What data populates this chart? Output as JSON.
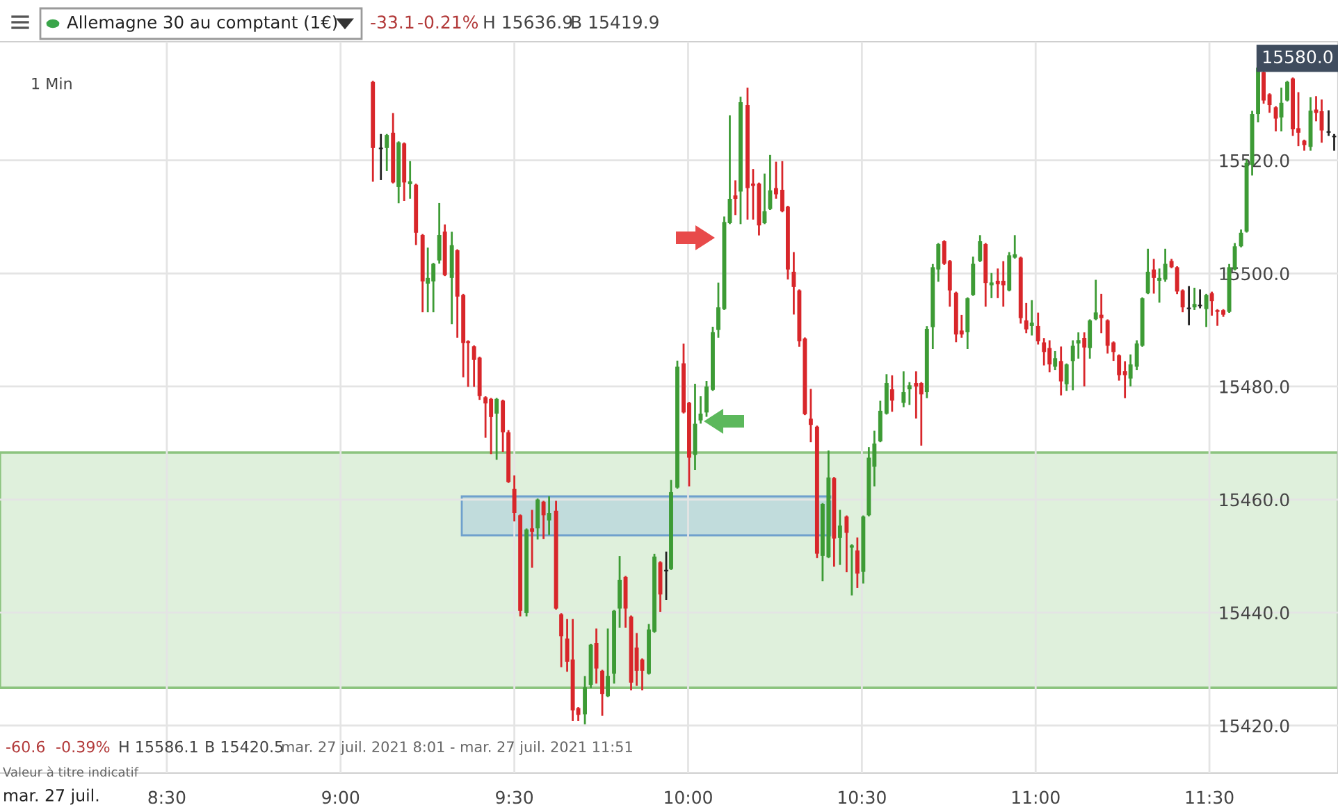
{
  "chart_data": {
    "type": "candlestick",
    "title": "Allemagne 30 au comptant (1€)",
    "annotations": [
      "-33.1",
      "-0.21%",
      "H 15636.9",
      "B 15419.9",
      "1 Min",
      "15580.0",
      "-60.6",
      "-0.39%",
      "H 15586.1",
      "B 15420.5",
      "mar. 27 juil. 2021 8:01 - mar. 27 juil. 2021 11:51",
      "Valeur à titre indicatif",
      "mar. 27 juil."
    ],
    "x": [
      9.093,
      9.116,
      9.133,
      9.151,
      9.167,
      9.183,
      9.2,
      9.217,
      9.236,
      9.251,
      9.267,
      9.284,
      9.3,
      9.32,
      9.336,
      9.353,
      9.367,
      9.384,
      9.4,
      9.417,
      9.433,
      9.449,
      9.467,
      9.483,
      9.5,
      9.517,
      9.535,
      9.551,
      9.567,
      9.584,
      9.6,
      9.62,
      9.635,
      9.652,
      9.668,
      9.684,
      9.703,
      9.72,
      9.736,
      9.753,
      9.769,
      9.787,
      9.803,
      9.82,
      9.836,
      9.852,
      9.868,
      9.887,
      9.903,
      9.92,
      9.937,
      9.951,
      9.969,
      9.987,
      10.003,
      10.02,
      10.036,
      10.053,
      10.071,
      10.087,
      10.104,
      10.12,
      10.136,
      10.151,
      10.171,
      10.187,
      10.204,
      10.22,
      10.236,
      10.253,
      10.271,
      10.287,
      10.304,
      10.32,
      10.336,
      10.353,
      10.371,
      10.387,
      10.404,
      10.42,
      10.437,
      10.456,
      10.471,
      10.487,
      10.504,
      10.52,
      10.536,
      10.553,
      10.571,
      10.587,
      10.62,
      10.637,
      10.656,
      10.671,
      10.687,
      10.704,
      10.72,
      10.737,
      10.753,
      10.771,
      10.787,
      10.804,
      10.82,
      10.84,
      10.856,
      10.873,
      10.891,
      10.907,
      10.924,
      10.94,
      10.957,
      10.973,
      10.989,
      11.007,
      11.024,
      11.04,
      11.056,
      11.073,
      11.089,
      11.107,
      11.123,
      11.14,
      11.156,
      11.173,
      11.189,
      11.207,
      11.224,
      11.24,
      11.257,
      11.273,
      11.291,
      11.307,
      11.323,
      11.34,
      11.356,
      11.373,
      11.391,
      11.407,
      11.423,
      11.441,
      11.457,
      11.473,
      11.491,
      11.507,
      11.523,
      11.54,
      11.557,
      11.573,
      11.591,
      11.607,
      11.623,
      11.64,
      11.656,
      11.673,
      11.691,
      11.707,
      11.724,
      11.74,
      11.756,
      11.773,
      11.791,
      11.807,
      11.823,
      11.843,
      11.859
    ],
    "ohlc": [
      [
        15533.9,
        15533.9,
        15516.4,
        15522.2
      ],
      [
        15522.0,
        15524.5,
        15516.7,
        15522.0
      ],
      [
        15522.2,
        15524.5,
        15518.3,
        15524.5
      ],
      [
        15524.9,
        15528.2,
        15516.1,
        15516.1
      ],
      [
        15515.3,
        15523.2,
        15512.6,
        15523.2
      ],
      [
        15523.0,
        15523.0,
        15513.0,
        15516.1
      ],
      [
        15515.8,
        15519.7,
        15513.4,
        15516.3
      ],
      [
        15515.7,
        15515.7,
        15505.2,
        15507.2
      ],
      [
        15506.8,
        15506.8,
        15493.3,
        15498.6
      ],
      [
        15498.2,
        15504.4,
        15493.3,
        15499.2
      ],
      [
        15498.6,
        15501.7,
        15493.3,
        15501.7
      ],
      [
        15502.3,
        15512.3,
        15501.9,
        15506.8
      ],
      [
        15507.4,
        15508.5,
        15499.7,
        15499.7
      ],
      [
        15499.2,
        15507.2,
        15491.2,
        15505.0
      ],
      [
        15504.1,
        15504.1,
        15488.8,
        15495.9
      ],
      [
        15496.2,
        15496.2,
        15481.8,
        15487.7
      ],
      [
        15488.0,
        15488.0,
        15480.1,
        15487.7
      ],
      [
        15487.1,
        15487.1,
        15480.1,
        15484.7
      ],
      [
        15485.1,
        15485.1,
        15477.8,
        15478.3
      ],
      [
        15478.1,
        15478.1,
        15471.1,
        15477.0
      ],
      [
        15477.8,
        15477.8,
        15468.2,
        15474.6
      ],
      [
        15475.2,
        15477.8,
        15467.2,
        15477.8
      ],
      [
        15477.5,
        15477.5,
        15468.6,
        15471.9
      ],
      [
        15471.9,
        15472.1,
        15463.1,
        15463.1
      ],
      [
        15461.9,
        15464.1,
        15456.3,
        15457.6
      ],
      [
        15457.2,
        15457.2,
        15439.5,
        15440.3
      ],
      [
        15439.9,
        15454.7,
        15439.5,
        15454.7
      ],
      [
        15454.9,
        15458.0,
        15448.1,
        15454.3
      ],
      [
        15454.9,
        15460.0,
        15453.1,
        15460.0
      ],
      [
        15459.6,
        15459.6,
        15453.2,
        15457.2
      ],
      [
        15456.3,
        15460.4,
        15453.9,
        15457.6
      ],
      [
        15458.0,
        15459.6,
        15440.7,
        15440.7
      ],
      [
        15439.7,
        15439.7,
        15430.5,
        15435.8
      ],
      [
        15435.4,
        15438.7,
        15429.7,
        15431.3
      ],
      [
        15431.7,
        15438.7,
        15421.0,
        15422.7
      ],
      [
        15423.1,
        15423.1,
        15421.0,
        15421.9
      ],
      [
        15422.0,
        15428.6,
        15420.4,
        15426.8
      ],
      [
        15427.2,
        15434.3,
        15426.8,
        15434.3
      ],
      [
        15434.6,
        15437.0,
        15427.6,
        15430.1
      ],
      [
        15429.7,
        15429.7,
        15421.9,
        15425.6
      ],
      [
        15425.2,
        15437.0,
        15425.2,
        15428.8
      ],
      [
        15429.2,
        15440.3,
        15427.6,
        15440.3
      ],
      [
        15440.7,
        15449.8,
        15437.5,
        15445.8
      ],
      [
        15446.3,
        15446.3,
        15437.5,
        15440.7
      ],
      [
        15439.3,
        15439.3,
        15426.4,
        15427.6
      ],
      [
        15433.8,
        15436.2,
        15427.2,
        15429.7
      ],
      [
        15431.7,
        15431.7,
        15426.4,
        15429.7
      ],
      [
        15429.2,
        15437.8,
        15429.2,
        15437.0
      ],
      [
        15436.6,
        15450.2,
        15436.6,
        15449.9
      ],
      [
        15448.9,
        15448.9,
        15440.3,
        15443.2
      ],
      [
        15447.3,
        15450.6,
        15442.4,
        15447.3
      ],
      [
        15447.7,
        15463.3,
        15447.7,
        15461.3
      ],
      [
        15462.1,
        15484.4,
        15462.1,
        15483.5
      ],
      [
        15484.1,
        15487.4,
        15475.4,
        15475.4
      ],
      [
        15477.1,
        15477.1,
        15462.5,
        15467.4
      ],
      [
        15467.9,
        15480.3,
        15465.4,
        15473.4
      ],
      [
        15474.0,
        15478.1,
        15473.6,
        15475.2
      ],
      [
        15475.4,
        15480.8,
        15474.8,
        15480.0
      ],
      [
        15479.4,
        15490.4,
        15479.4,
        15489.6
      ],
      [
        15490.0,
        15498.2,
        15488.8,
        15494.0
      ],
      [
        15493.7,
        15509.9,
        15493.7,
        15509.1
      ],
      [
        15508.9,
        15527.8,
        15508.9,
        15513.2
      ],
      [
        15513.8,
        15516.3,
        15510.5,
        15513.2
      ],
      [
        15514.5,
        15531.1,
        15508.9,
        15530.3
      ],
      [
        15529.8,
        15532.7,
        15509.7,
        15515.1
      ],
      [
        15515.9,
        15518.3,
        15509.7,
        15515.5
      ],
      [
        15515.9,
        15515.9,
        15506.9,
        15508.5
      ],
      [
        15508.9,
        15517.5,
        15508.9,
        15511.0
      ],
      [
        15511.4,
        15520.8,
        15511.4,
        15514.7
      ],
      [
        15515.1,
        15519.6,
        15513.4,
        15514.0
      ],
      [
        15514.8,
        15519.7,
        15511.0,
        15511.0
      ],
      [
        15511.8,
        15511.8,
        15499.1,
        15500.7
      ],
      [
        15500.3,
        15503.6,
        15492.9,
        15497.6
      ],
      [
        15497.0,
        15497.0,
        15487.2,
        15488.0
      ],
      [
        15488.5,
        15488.5,
        15475.1,
        15475.1
      ],
      [
        15474.3,
        15479.4,
        15470.3,
        15473.2
      ],
      [
        15472.9,
        15472.9,
        15449.8,
        15450.4
      ],
      [
        15450.0,
        15459.2,
        15445.7,
        15459.2
      ],
      [
        15449.8,
        15468.5,
        15449.8,
        15463.9
      ],
      [
        15463.8,
        15463.8,
        15448.3,
        15453.1
      ],
      [
        15453.2,
        15458.0,
        15448.6,
        15455.4
      ],
      [
        15457.0,
        15457.0,
        15447.3,
        15454.1
      ],
      [
        15451.5,
        15451.9,
        15443.2,
        15451.9
      ],
      [
        15451.0,
        15453.1,
        15444.5,
        15446.9
      ],
      [
        15447.2,
        15457.0,
        15445.3,
        15457.0
      ],
      [
        15457.2,
        15469.1,
        15457.2,
        15467.4
      ],
      [
        15465.8,
        15472.0,
        15462.5,
        15469.9
      ],
      [
        15470.3,
        15477.3,
        15470.3,
        15475.7
      ],
      [
        15475.2,
        15482.0,
        15475.2,
        15480.6
      ],
      [
        15479.5,
        15481.8,
        15475.7,
        15477.5
      ],
      [
        15477.1,
        15482.5,
        15476.5,
        15479.0
      ],
      [
        15479.5,
        15480.6,
        15476.9,
        15480.2
      ],
      [
        15480.6,
        15482.5,
        15474.5,
        15480.0
      ],
      [
        15480.6,
        15480.6,
        15469.7,
        15478.6
      ],
      [
        15479.0,
        15490.5,
        15478.1,
        15490.2
      ],
      [
        15490.5,
        15501.5,
        15486.8,
        15501.1
      ],
      [
        15500.7,
        15505.2,
        15498.7,
        15505.2
      ],
      [
        15505.7,
        15505.7,
        15501.7,
        15501.7
      ],
      [
        15502.2,
        15502.2,
        15494.3,
        15497.0
      ],
      [
        15496.6,
        15496.6,
        15488.0,
        15489.2
      ],
      [
        15489.9,
        15492.5,
        15488.8,
        15489.2
      ],
      [
        15489.6,
        15495.6,
        15486.8,
        15495.6
      ],
      [
        15496.2,
        15502.8,
        15496.2,
        15501.7
      ],
      [
        15502.2,
        15506.6,
        15502.2,
        15505.7
      ],
      [
        15505.2,
        15505.2,
        15494.3,
        15498.3
      ],
      [
        15497.9,
        15499.9,
        15495.8,
        15498.4
      ],
      [
        15498.7,
        15500.7,
        15495.8,
        15498.1
      ],
      [
        15498.7,
        15502.0,
        15494.3,
        15497.9
      ],
      [
        15497.0,
        15503.6,
        15497.0,
        15503.2
      ],
      [
        15502.8,
        15506.6,
        15502.8,
        15503.4
      ],
      [
        15502.8,
        15502.8,
        15491.3,
        15492.1
      ],
      [
        15491.7,
        15494.6,
        15489.6,
        15490.1
      ],
      [
        15490.7,
        15495.1,
        15489.2,
        15491.3
      ],
      [
        15490.7,
        15492.9,
        15487.6,
        15488.0
      ],
      [
        15487.8,
        15488.4,
        15483.9,
        15486.1
      ],
      [
        15486.8,
        15488.0,
        15482.7,
        15483.9
      ],
      [
        15483.5,
        15486.1,
        15483.1,
        15485.0
      ],
      [
        15484.5,
        15486.9,
        15478.6,
        15480.9
      ],
      [
        15480.4,
        15483.9,
        15479.4,
        15483.9
      ],
      [
        15484.5,
        15488.0,
        15479.5,
        15487.2
      ],
      [
        15487.6,
        15489.4,
        15485.1,
        15488.2
      ],
      [
        15488.6,
        15489.4,
        15480.2,
        15486.9
      ],
      [
        15486.8,
        15491.7,
        15485.1,
        15491.7
      ],
      [
        15491.9,
        15498.7,
        15491.9,
        15493.1
      ],
      [
        15492.7,
        15496.2,
        15489.6,
        15492.1
      ],
      [
        15491.7,
        15491.7,
        15486.0,
        15487.2
      ],
      [
        15487.8,
        15487.8,
        15484.7,
        15486.1
      ],
      [
        15485.5,
        15485.5,
        15481.2,
        15482.0
      ],
      [
        15482.7,
        15484.3,
        15478.1,
        15482.0
      ],
      [
        15481.4,
        15485.5,
        15480.2,
        15483.9
      ],
      [
        15483.5,
        15488.0,
        15483.1,
        15487.6
      ],
      [
        15487.2,
        15495.6,
        15487.2,
        15495.6
      ],
      [
        15496.5,
        15504.2,
        15496.5,
        15500.3
      ],
      [
        15500.7,
        15502.4,
        15496.6,
        15499.2
      ],
      [
        15498.7,
        15500.7,
        15495.0,
        15499.2
      ],
      [
        15498.9,
        15504.2,
        15498.7,
        15501.7
      ],
      [
        15502.2,
        15502.4,
        15501.1,
        15501.1
      ],
      [
        15501.1,
        15501.1,
        15496.5,
        15496.8
      ],
      [
        15497.0,
        15497.0,
        15493.3,
        15494.0
      ],
      [
        15493.7,
        15497.6,
        15491.0,
        15493.7
      ],
      [
        15494.0,
        15497.3,
        15493.7,
        15494.6
      ],
      [
        15494.2,
        15497.0,
        15494.0,
        15494.2
      ],
      [
        15493.7,
        15496.2,
        15490.7,
        15496.2
      ],
      [
        15496.5,
        15496.6,
        15492.7,
        15495.1
      ],
      [
        15493.5,
        15493.5,
        15490.9,
        15493.2
      ],
      [
        15493.5,
        15493.5,
        15492.5,
        15492.7
      ],
      [
        15493.2,
        15501.5,
        15493.2,
        15501.1
      ],
      [
        15500.7,
        15505.2,
        15500.7,
        15504.8
      ],
      [
        15504.8,
        15507.6,
        15504.8,
        15507.2
      ],
      [
        15507.4,
        15520.0,
        15507.4,
        15519.6
      ],
      [
        15519.2,
        15528.6,
        15517.5,
        15528.2
      ],
      [
        15528.2,
        15536.8,
        15526.9,
        15536.4
      ],
      [
        15535.6,
        15535.6,
        15530.2,
        15530.6
      ],
      [
        15531.7,
        15531.7,
        15528.6,
        15529.8
      ],
      [
        15529.4,
        15529.4,
        15525.3,
        15527.4
      ],
      [
        15527.6,
        15532.7,
        15525.3,
        15530.2
      ],
      [
        15530.6,
        15533.9,
        15530.6,
        15533.9
      ],
      [
        15534.5,
        15534.5,
        15524.5,
        15525.5
      ],
      [
        15525.7,
        15531.9,
        15522.7,
        15524.9
      ],
      [
        15523.5,
        15523.5,
        15521.9,
        15522.7
      ],
      [
        15522.4,
        15531.0,
        15521.9,
        15528.8
      ],
      [
        15529.0,
        15531.2,
        15527.1,
        15528.4
      ],
      [
        15528.7,
        15530.6,
        15523.3,
        15525.3
      ],
      [
        15524.9,
        15528.7,
        15524.5,
        15524.9
      ],
      [
        15524.1,
        15524.5,
        15521.9,
        15524.1
      ]
    ],
    "colors": [
      "#d8262a",
      "#222222",
      "#3d9b35",
      "#d8262a",
      "#3d9b35",
      "#d8262a",
      "#3d9b35",
      "#d8262a",
      "#d8262a",
      "#3d9b35",
      "#3d9b35",
      "#3d9b35",
      "#d8262a",
      "#3d9b35",
      "#d8262a",
      "#d8262a",
      "#d8262a",
      "#d8262a",
      "#d8262a",
      "#d8262a",
      "#d8262a",
      "#3d9b35",
      "#d8262a",
      "#d8262a",
      "#d8262a",
      "#d8262a",
      "#3d9b35",
      "#d8262a",
      "#3d9b35",
      "#d8262a",
      "#3d9b35",
      "#d8262a",
      "#d8262a",
      "#d8262a",
      "#d8262a",
      "#d8262a",
      "#3d9b35",
      "#3d9b35",
      "#d8262a",
      "#d8262a",
      "#3d9b35",
      "#3d9b35",
      "#3d9b35",
      "#d8262a",
      "#d8262a",
      "#d8262a",
      "#d8262a",
      "#3d9b35",
      "#3d9b35",
      "#d8262a",
      "#222222",
      "#3d9b35",
      "#3d9b35",
      "#d8262a",
      "#d8262a",
      "#3d9b35",
      "#3d9b35",
      "#3d9b35",
      "#3d9b35",
      "#3d9b35",
      "#3d9b35",
      "#3d9b35",
      "#d8262a",
      "#3d9b35",
      "#d8262a",
      "#d8262a",
      "#d8262a",
      "#3d9b35",
      "#3d9b35",
      "#d8262a",
      "#d8262a",
      "#d8262a",
      "#d8262a",
      "#d8262a",
      "#d8262a",
      "#d8262a",
      "#d8262a",
      "#3d9b35",
      "#3d9b35",
      "#d8262a",
      "#3d9b35",
      "#d8262a",
      "#3d9b35",
      "#d8262a",
      "#3d9b35",
      "#3d9b35",
      "#3d9b35",
      "#3d9b35",
      "#3d9b35",
      "#d8262a",
      "#3d9b35",
      "#3d9b35",
      "#d8262a",
      "#d8262a",
      "#3d9b35",
      "#3d9b35",
      "#3d9b35",
      "#d8262a",
      "#d8262a",
      "#d8262a",
      "#d8262a",
      "#3d9b35",
      "#3d9b35",
      "#3d9b35",
      "#d8262a",
      "#3d9b35",
      "#d8262a",
      "#d8262a",
      "#3d9b35",
      "#3d9b35",
      "#d8262a",
      "#d8262a",
      "#3d9b35",
      "#d8262a",
      "#d8262a",
      "#d8262a",
      "#3d9b35",
      "#d8262a",
      "#3d9b35",
      "#3d9b35",
      "#3d9b35",
      "#d8262a",
      "#3d9b35",
      "#3d9b35",
      "#d8262a",
      "#d8262a",
      "#d8262a",
      "#d8262a",
      "#d8262a",
      "#3d9b35",
      "#3d9b35",
      "#3d9b35",
      "#3d9b35",
      "#d8262a",
      "#3d9b35",
      "#3d9b35",
      "#d8262a",
      "#d8262a",
      "#d8262a",
      "#222222",
      "#3d9b35",
      "#222222",
      "#3d9b35",
      "#d8262a",
      "#d8262a",
      "#d8262a",
      "#3d9b35",
      "#3d9b35",
      "#3d9b35",
      "#3d9b35",
      "#3d9b35",
      "#3d9b35",
      "#d8262a",
      "#d8262a",
      "#d8262a",
      "#3d9b35",
      "#3d9b35",
      "#d8262a",
      "#d8262a",
      "#d8262a",
      "#3d9b35",
      "#d8262a",
      "#d8262a",
      "#222222",
      "#222222"
    ],
    "xlim": [
      8.02,
      11.87
    ],
    "ylim": [
      15411.6,
      15541
    ],
    "xticks": [
      {
        "value": 8.5,
        "label": "8:30"
      },
      {
        "value": 9.0,
        "label": "9:00"
      },
      {
        "value": 9.5,
        "label": "9:30"
      },
      {
        "value": 10.0,
        "label": "10:00"
      },
      {
        "value": 10.5,
        "label": "10:30"
      },
      {
        "value": 11.0,
        "label": "11:00"
      },
      {
        "value": 11.5,
        "label": "11:30"
      }
    ],
    "yticks": [
      {
        "value": 15420,
        "label": "15420.0"
      },
      {
        "value": 15440,
        "label": "15440.0"
      },
      {
        "value": 15460,
        "label": "15460.0"
      },
      {
        "value": 15480,
        "label": "15480.0"
      },
      {
        "value": 15500,
        "label": "15500.0"
      },
      {
        "value": 15520,
        "label": "15520.0"
      }
    ],
    "bands": [
      {
        "axis": "y",
        "from": 15426.7,
        "to": 15468.3,
        "color": "#dff0dc"
      }
    ],
    "grid": true
  }
}
